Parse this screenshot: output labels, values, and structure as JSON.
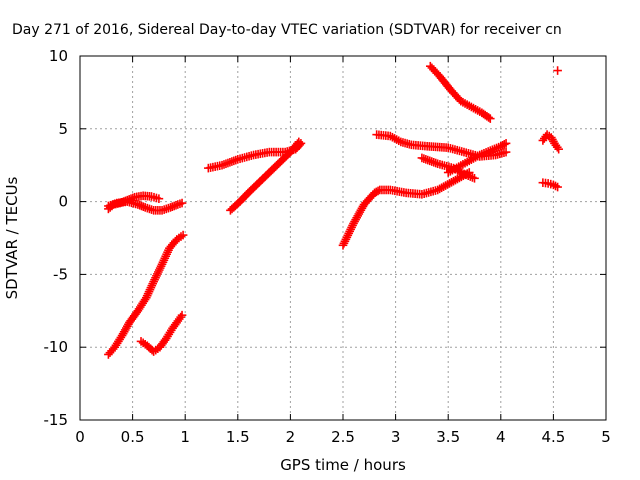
{
  "chart_data": {
    "type": "scatter",
    "title": "Day 271 of 2016, Sidereal Day-to-day VTEC variation (SDTVAR) for receiver cn",
    "xlabel": "GPS time / hours",
    "ylabel": "SDTVAR / TECUs",
    "xlim": [
      0,
      5
    ],
    "ylim": [
      -15,
      10
    ],
    "x_ticks": [
      0,
      0.5,
      1,
      1.5,
      2,
      2.5,
      3,
      3.5,
      4,
      4.5,
      5
    ],
    "y_ticks": [
      -15,
      -10,
      -5,
      0,
      5,
      10
    ],
    "x_tick_labels": [
      "0",
      "0.5",
      "1",
      "1.5",
      "2",
      "2.5",
      "3",
      "3.5",
      "4",
      "4.5",
      "5"
    ],
    "y_tick_labels": [
      "-15",
      "-10",
      "-5",
      "0",
      "5",
      "10"
    ],
    "grid": true,
    "marker": "plus",
    "color": "#ff0000",
    "segments": [
      {
        "x": [
          0.27,
          0.32,
          0.38,
          0.45,
          0.52,
          0.6,
          0.68,
          0.75
        ],
        "y": [
          -0.5,
          -0.2,
          -0.1,
          0.1,
          0.3,
          0.4,
          0.35,
          0.2
        ]
      },
      {
        "x": [
          0.27,
          0.35,
          0.45,
          0.55,
          0.62,
          0.7,
          0.78,
          0.86,
          0.93,
          0.97
        ],
        "y": [
          -0.3,
          -0.1,
          0.0,
          -0.2,
          -0.4,
          -0.6,
          -0.6,
          -0.4,
          -0.2,
          -0.1
        ]
      },
      {
        "x": [
          0.27,
          0.33,
          0.4,
          0.47,
          0.55,
          0.63,
          0.7,
          0.78,
          0.85,
          0.92,
          0.98
        ],
        "y": [
          -10.5,
          -10.0,
          -9.2,
          -8.3,
          -7.5,
          -6.6,
          -5.5,
          -4.3,
          -3.2,
          -2.6,
          -2.3
        ]
      },
      {
        "x": [
          0.58,
          0.64,
          0.7,
          0.76,
          0.82,
          0.88,
          0.93,
          0.97
        ],
        "y": [
          -9.6,
          -9.9,
          -10.3,
          -10.0,
          -9.4,
          -8.7,
          -8.2,
          -7.8
        ]
      },
      {
        "x": [
          1.22,
          1.35,
          1.5,
          1.65,
          1.8,
          1.95,
          2.05,
          2.1
        ],
        "y": [
          2.3,
          2.5,
          2.9,
          3.2,
          3.4,
          3.4,
          3.6,
          4.0
        ]
      },
      {
        "x": [
          1.43,
          1.52,
          1.6,
          1.7,
          1.8,
          1.9,
          2.0,
          2.08
        ],
        "y": [
          -0.6,
          0.0,
          0.6,
          1.3,
          2.0,
          2.7,
          3.4,
          4.1
        ]
      },
      {
        "x": [
          2.5,
          2.6,
          2.7,
          2.8,
          2.85,
          2.95,
          3.1,
          3.25,
          3.4,
          3.55,
          3.7
        ],
        "y": [
          -3.0,
          -1.5,
          -0.2,
          0.6,
          0.8,
          0.8,
          0.6,
          0.5,
          0.8,
          1.4,
          2.0
        ]
      },
      {
        "x": [
          2.82,
          2.95,
          3.05,
          3.15,
          3.3,
          3.5,
          3.65,
          3.8,
          3.95,
          4.05
        ],
        "y": [
          4.6,
          4.5,
          4.1,
          3.9,
          3.8,
          3.7,
          3.4,
          3.1,
          3.2,
          3.4
        ]
      },
      {
        "x": [
          3.25,
          3.4,
          3.55,
          3.65,
          3.75
        ],
        "y": [
          3.0,
          2.6,
          2.3,
          1.9,
          1.6
        ]
      },
      {
        "x": [
          3.5,
          3.6,
          3.7,
          3.8,
          3.9,
          4.0,
          4.05
        ],
        "y": [
          2.0,
          2.4,
          2.8,
          3.2,
          3.5,
          3.8,
          4.0
        ]
      },
      {
        "x": [
          3.33,
          3.42,
          3.52,
          3.62,
          3.72,
          3.82,
          3.9
        ],
        "y": [
          9.3,
          8.6,
          7.7,
          6.9,
          6.5,
          6.1,
          5.7
        ]
      },
      {
        "x": [
          4.4,
          4.45,
          4.5,
          4.54
        ],
        "y": [
          1.3,
          1.25,
          1.15,
          1.0
        ]
      },
      {
        "x": [
          4.4,
          4.44,
          4.48,
          4.51,
          4.55
        ],
        "y": [
          4.2,
          4.6,
          4.4,
          4.0,
          3.6
        ]
      },
      {
        "x": [
          4.54
        ],
        "y": [
          9.0
        ]
      }
    ]
  }
}
